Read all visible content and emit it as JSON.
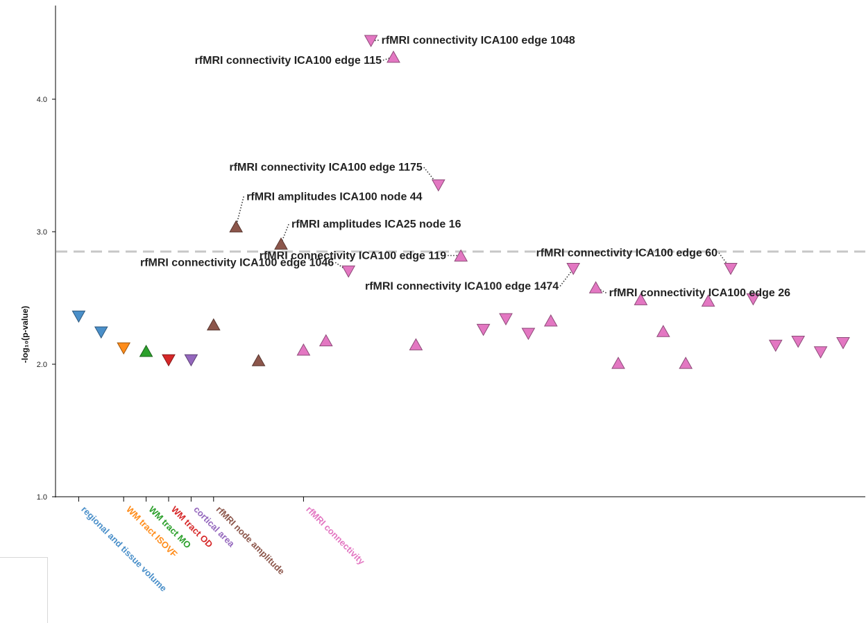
{
  "chart_data": {
    "type": "scatter",
    "title": "",
    "xlabel": "",
    "ylabel": "-log₁₀(p-value)",
    "ylim": [
      1.0,
      4.65
    ],
    "yticks": [
      1.0,
      2.0,
      3.0,
      4.0
    ],
    "ytick_labels": [
      "1.0",
      "2.0",
      "3.0",
      "4.0"
    ],
    "threshold": 2.85,
    "grid": false,
    "legend": "none",
    "categories": [
      {
        "name": "regional and tissue volume",
        "color": "#4a8fc9"
      },
      {
        "name": "WM tract ISOVF",
        "color": "#ff8c1a"
      },
      {
        "name": "WM tract MO",
        "color": "#2ca02c"
      },
      {
        "name": "WM tract OD",
        "color": "#d62728"
      },
      {
        "name": "cortical area",
        "color": "#9467bd"
      },
      {
        "name": "rfMRI node amplitude",
        "color": "#8c564b"
      },
      {
        "name": "rfMRI connectivity",
        "color": "#e377c2"
      }
    ],
    "points": [
      {
        "x": 1,
        "y": 2.36,
        "dir": "down",
        "cat": 0
      },
      {
        "x": 2,
        "y": 2.24,
        "dir": "down",
        "cat": 0
      },
      {
        "x": 3,
        "y": 2.12,
        "dir": "down",
        "cat": 1
      },
      {
        "x": 4,
        "y": 2.1,
        "dir": "up",
        "cat": 2
      },
      {
        "x": 5,
        "y": 2.03,
        "dir": "down",
        "cat": 3
      },
      {
        "x": 6,
        "y": 2.03,
        "dir": "down",
        "cat": 4
      },
      {
        "x": 7,
        "y": 2.3,
        "dir": "up",
        "cat": 5
      },
      {
        "x": 8,
        "y": 3.04,
        "dir": "up",
        "cat": 5
      },
      {
        "x": 9,
        "y": 2.03,
        "dir": "up",
        "cat": 5
      },
      {
        "x": 10,
        "y": 2.91,
        "dir": "up",
        "cat": 5
      },
      {
        "x": 11,
        "y": 2.11,
        "dir": "up",
        "cat": 6
      },
      {
        "x": 12,
        "y": 2.18,
        "dir": "up",
        "cat": 6
      },
      {
        "x": 13,
        "y": 2.7,
        "dir": "down",
        "cat": 6
      },
      {
        "x": 14,
        "y": 4.44,
        "dir": "down",
        "cat": 6
      },
      {
        "x": 15,
        "y": 4.32,
        "dir": "up",
        "cat": 6
      },
      {
        "x": 16,
        "y": 2.15,
        "dir": "up",
        "cat": 6
      },
      {
        "x": 17,
        "y": 3.35,
        "dir": "down",
        "cat": 6
      },
      {
        "x": 18,
        "y": 2.82,
        "dir": "up",
        "cat": 6
      },
      {
        "x": 19,
        "y": 2.26,
        "dir": "down",
        "cat": 6
      },
      {
        "x": 20,
        "y": 2.34,
        "dir": "down",
        "cat": 6
      },
      {
        "x": 21,
        "y": 2.23,
        "dir": "down",
        "cat": 6
      },
      {
        "x": 22,
        "y": 2.33,
        "dir": "up",
        "cat": 6
      },
      {
        "x": 23,
        "y": 2.72,
        "dir": "down",
        "cat": 6
      },
      {
        "x": 24,
        "y": 2.58,
        "dir": "up",
        "cat": 6
      },
      {
        "x": 25,
        "y": 2.01,
        "dir": "up",
        "cat": 6
      },
      {
        "x": 26,
        "y": 2.49,
        "dir": "up",
        "cat": 6
      },
      {
        "x": 27,
        "y": 2.25,
        "dir": "up",
        "cat": 6
      },
      {
        "x": 28,
        "y": 2.01,
        "dir": "up",
        "cat": 6
      },
      {
        "x": 29,
        "y": 2.48,
        "dir": "up",
        "cat": 6
      },
      {
        "x": 30,
        "y": 2.72,
        "dir": "down",
        "cat": 6
      },
      {
        "x": 31,
        "y": 2.49,
        "dir": "down",
        "cat": 6
      },
      {
        "x": 32,
        "y": 2.14,
        "dir": "down",
        "cat": 6
      },
      {
        "x": 33,
        "y": 2.17,
        "dir": "down",
        "cat": 6
      },
      {
        "x": 34,
        "y": 2.09,
        "dir": "down",
        "cat": 6
      },
      {
        "x": 35,
        "y": 2.16,
        "dir": "down",
        "cat": 6
      }
    ],
    "annotations": [
      {
        "text": "rfMRI connectivity ICA100 edge 1046",
        "point": 13,
        "side": "left"
      },
      {
        "text": "rfMRI amplitudes ICA100 node 44",
        "point": 8,
        "side": "right"
      },
      {
        "text": "rfMRI amplitudes ICA25 node 16",
        "point": 10,
        "side": "right"
      },
      {
        "text": "rfMRI connectivity ICA100 edge 1048",
        "point": 14,
        "side": "right"
      },
      {
        "text": "rfMRI connectivity ICA100 edge 115",
        "point": 15,
        "side": "left"
      },
      {
        "text": "rfMRI connectivity ICA100 edge 1175",
        "point": 17,
        "side": "left"
      },
      {
        "text": "rfMRI connectivity ICA100 edge 119",
        "point": 18,
        "side": "left"
      },
      {
        "text": "rfMRI connectivity ICA100 edge 1474",
        "point": 23,
        "side": "left"
      },
      {
        "text": "rfMRI connectivity ICA100 edge 26",
        "point": 24,
        "side": "right"
      },
      {
        "text": "rfMRI connectivity ICA100 edge 60",
        "point": 30,
        "side": "left"
      }
    ]
  }
}
